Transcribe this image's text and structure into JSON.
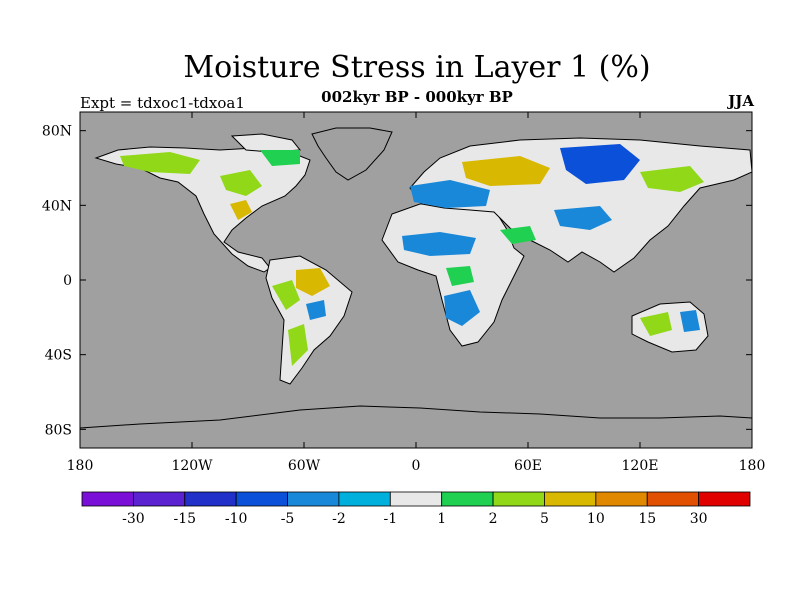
{
  "title": "Moisture Stress in Layer 1 (%)",
  "subtitle": "002kyr BP - 000kyr BP",
  "experiment": "Expt = tdxoc1-tdxoa1",
  "season": "JJA",
  "map": {
    "lon_range": [
      -180,
      180
    ],
    "lat_range": [
      -90,
      90
    ],
    "ocean_color": "#a0a0a0",
    "lat_ticks": [
      {
        "value": 80,
        "label": "80N"
      },
      {
        "value": 40,
        "label": "40N"
      },
      {
        "value": 0,
        "label": "0"
      },
      {
        "value": -40,
        "label": "40S"
      },
      {
        "value": -80,
        "label": "80S"
      }
    ],
    "lon_ticks": [
      {
        "value": -180,
        "label": "180"
      },
      {
        "value": -120,
        "label": "120W"
      },
      {
        "value": -60,
        "label": "60W"
      },
      {
        "value": 0,
        "label": "0"
      },
      {
        "value": 60,
        "label": "60E"
      },
      {
        "value": 120,
        "label": "120E"
      },
      {
        "value": 180,
        "label": "180"
      }
    ]
  },
  "colorbar": {
    "colors": [
      "#7a10d8",
      "#5a22d0",
      "#2030c8",
      "#0a50d8",
      "#1a88d8",
      "#00b0dc",
      "#e8e8e8",
      "#20d050",
      "#90d818",
      "#d8b800",
      "#e08800",
      "#e05000",
      "#e00000"
    ],
    "labels": [
      "-30",
      "-15",
      "-10",
      "-5",
      "-2",
      "-1",
      "1",
      "2",
      "5",
      "10",
      "15",
      "30"
    ]
  }
}
